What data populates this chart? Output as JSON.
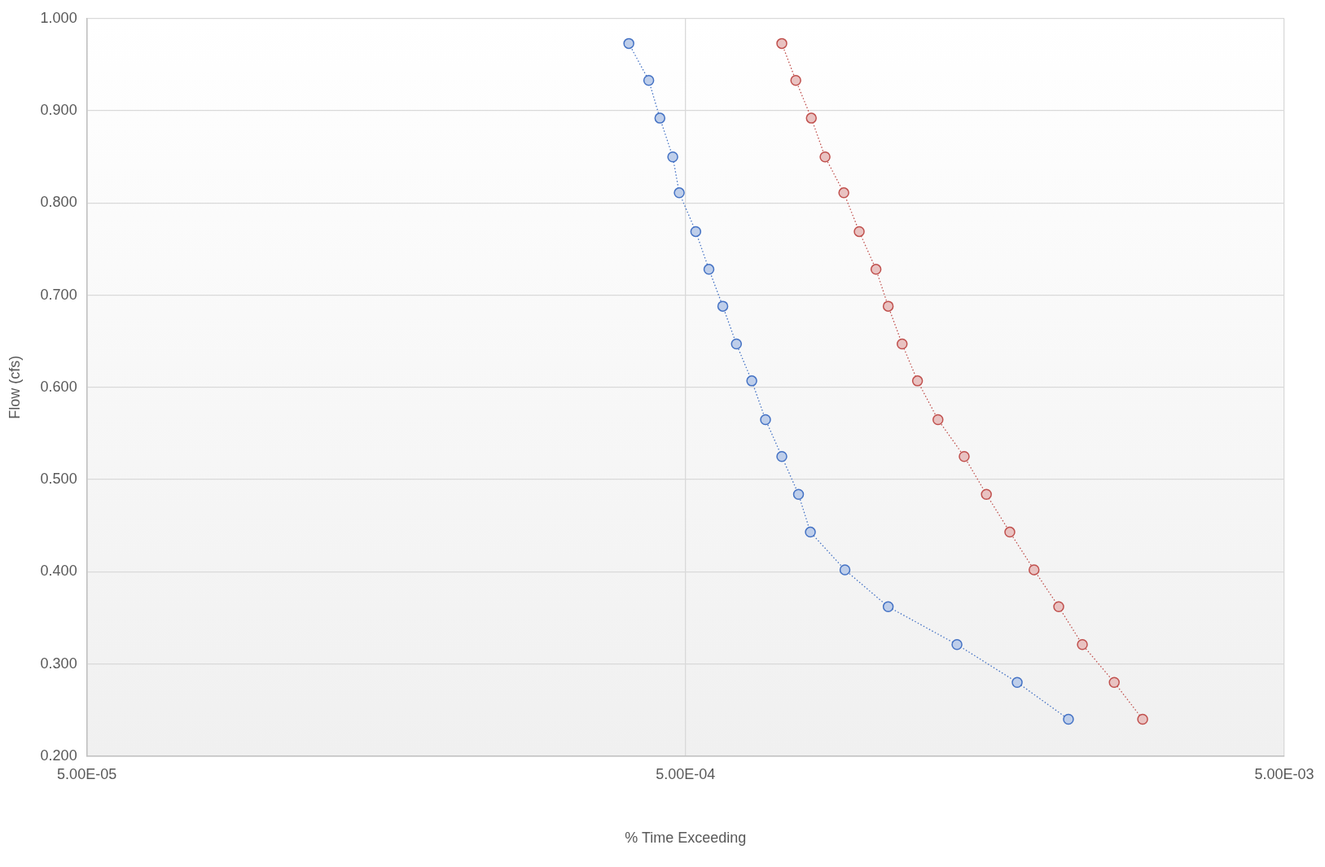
{
  "chart_data": {
    "type": "line",
    "xlabel": "% Time Exceeding",
    "ylabel": "Flow (cfs)",
    "log": "x",
    "grid": true,
    "legend": false,
    "marker": "circle",
    "line_style": "dotted",
    "xlim": [
      5e-05,
      0.005
    ],
    "xticks": [
      {
        "value": 5e-05,
        "label": "5.00E-05"
      },
      {
        "value": 0.0005,
        "label": "5.00E-04"
      },
      {
        "value": 0.005,
        "label": "5.00E-03"
      }
    ],
    "ylim": [
      0.2,
      1.0
    ],
    "yticks": [
      {
        "value": 0.2,
        "label": "0.200"
      },
      {
        "value": 0.3,
        "label": "0.300"
      },
      {
        "value": 0.4,
        "label": "0.400"
      },
      {
        "value": 0.5,
        "label": "0.500"
      },
      {
        "value": 0.6,
        "label": "0.600"
      },
      {
        "value": 0.7,
        "label": "0.700"
      },
      {
        "value": 0.8,
        "label": "0.800"
      },
      {
        "value": 0.9,
        "label": "0.900"
      },
      {
        "value": 1.0,
        "label": "1.000"
      }
    ],
    "series": [
      {
        "color": "#4472c4",
        "x": [
          0.000402,
          0.000434,
          0.000453,
          0.000476,
          0.000488,
          0.00052,
          0.000547,
          0.000577,
          0.000608,
          0.000645,
          0.00068,
          0.000724,
          0.000772,
          0.000808,
          0.000923,
          0.00109,
          0.00142,
          0.00179,
          0.00218
        ],
        "values": [
          0.973,
          0.933,
          0.892,
          0.85,
          0.811,
          0.769,
          0.728,
          0.688,
          0.647,
          0.607,
          0.565,
          0.525,
          0.484,
          0.443,
          0.402,
          0.362,
          0.321,
          0.28,
          0.24
        ]
      },
      {
        "color": "#c0504d",
        "x": [
          0.000724,
          0.000764,
          0.000811,
          0.000855,
          0.000919,
          0.000975,
          0.00104,
          0.00109,
          0.00115,
          0.00122,
          0.00132,
          0.00146,
          0.00159,
          0.00174,
          0.00191,
          0.0021,
          0.0023,
          0.0026,
          0.0029
        ],
        "values": [
          0.973,
          0.933,
          0.892,
          0.85,
          0.811,
          0.769,
          0.728,
          0.688,
          0.647,
          0.607,
          0.565,
          0.525,
          0.484,
          0.443,
          0.402,
          0.362,
          0.321,
          0.28,
          0.24
        ]
      }
    ]
  }
}
